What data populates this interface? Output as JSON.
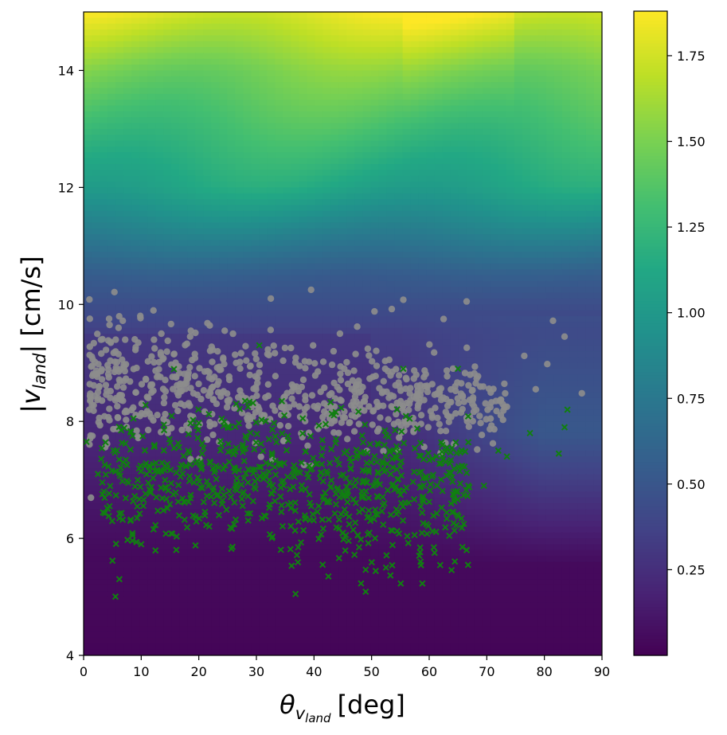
{
  "chart_data": {
    "type": "scatter",
    "title": "",
    "xlabel": "θ",
    "xlabel_sub": "v",
    "xlabel_subsub": "land",
    "xlabel_unit": "[deg]",
    "ylabel_prefix": "|v",
    "ylabel_sub": "land",
    "ylabel_suffix": "| [cm/s]",
    "xlim": [
      0,
      90
    ],
    "ylim": [
      4,
      15
    ],
    "xticks": [
      0,
      10,
      20,
      30,
      40,
      50,
      60,
      70,
      80,
      90
    ],
    "yticks": [
      4,
      6,
      8,
      10,
      12,
      14
    ],
    "xtick_labels": [
      "0",
      "10",
      "20",
      "30",
      "40",
      "50",
      "60",
      "70",
      "80",
      "90"
    ],
    "ytick_labels": [
      "4",
      "6",
      "8",
      "10",
      "12",
      "14"
    ],
    "grid": false,
    "background": {
      "type": "heatmap",
      "colormap": "viridis",
      "description_levels": [
        {
          "v": 4.0,
          "value": 0.02
        },
        {
          "v": 5.7,
          "value": 0.05
        },
        {
          "v": 8.0,
          "value": 0.25
        },
        {
          "v": 9.5,
          "value": 0.35
        },
        {
          "v": 10.5,
          "value": 0.55
        },
        {
          "v": 12.0,
          "value": 1.1
        },
        {
          "v": 14.0,
          "value": 1.5
        },
        {
          "v": 15.0,
          "value": 1.8
        }
      ]
    },
    "colorbar": {
      "min": 0.0,
      "max": 1.88,
      "ticks": [
        0.25,
        0.5,
        0.75,
        1.0,
        1.25,
        1.5,
        1.75
      ],
      "tick_labels": [
        "0.25",
        "0.50",
        "0.75",
        "1.00",
        "1.25",
        "1.50",
        "1.75"
      ]
    },
    "series": [
      {
        "marker": "circle",
        "color": "#8c8c8c",
        "cluster": {
          "x_range": [
            1,
            86
          ],
          "y_center": 8.6,
          "y_spread": 0.55,
          "count": 700
        },
        "points": [
          [
            4.5,
            9.65
          ],
          [
            6.8,
            9.72
          ],
          [
            13.5,
            9.5
          ],
          [
            18.5,
            9.45
          ],
          [
            21.5,
            9.68
          ],
          [
            24.5,
            9.55
          ],
          [
            32.5,
            10.1
          ],
          [
            39.5,
            10.25
          ],
          [
            50.5,
            9.88
          ],
          [
            53.5,
            9.92
          ],
          [
            55.5,
            10.08
          ],
          [
            62.5,
            9.75
          ],
          [
            66.5,
            10.05
          ],
          [
            81.5,
            9.72
          ],
          [
            83.5,
            9.45
          ],
          [
            86.5,
            8.48
          ],
          [
            78.5,
            8.55
          ],
          [
            80.5,
            8.98
          ],
          [
            76.5,
            9.12
          ],
          [
            1.5,
            8.95
          ],
          [
            2.5,
            8.5
          ],
          [
            1.0,
            8.2
          ],
          [
            73.5,
            8.25
          ],
          [
            67.5,
            8.3
          ],
          [
            60.5,
            8.1
          ],
          [
            44.5,
            9.5
          ],
          [
            47.5,
            9.62
          ]
        ]
      },
      {
        "marker": "x",
        "color": "#117f11",
        "cluster": {
          "x_range": [
            0,
            85
          ],
          "y_center": 7.0,
          "y_spread": 0.6,
          "count": 750
        },
        "points": [
          [
            0.5,
            7.65
          ],
          [
            2.5,
            7.1
          ],
          [
            3.5,
            6.8
          ],
          [
            4.5,
            6.55
          ],
          [
            8.5,
            6.05
          ],
          [
            10.0,
            5.9
          ],
          [
            36.8,
            5.05
          ],
          [
            42.5,
            5.35
          ],
          [
            41.5,
            5.55
          ],
          [
            52.5,
            5.5
          ],
          [
            58.5,
            5.6
          ],
          [
            66.5,
            5.8
          ],
          [
            82.5,
            7.45
          ],
          [
            83.5,
            7.9
          ],
          [
            84.0,
            8.2
          ],
          [
            77.5,
            7.8
          ],
          [
            73.5,
            7.4
          ],
          [
            69.5,
            6.9
          ],
          [
            72.0,
            7.5
          ],
          [
            65.0,
            8.9
          ],
          [
            55.5,
            8.9
          ],
          [
            30.5,
            9.3
          ],
          [
            26.5,
            8.3
          ]
        ]
      }
    ]
  }
}
